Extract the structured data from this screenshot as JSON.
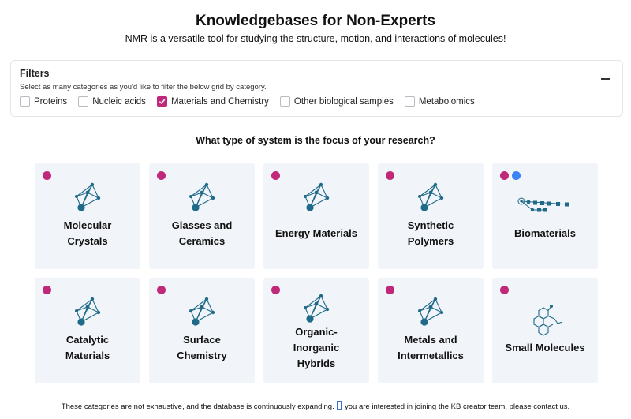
{
  "header": {
    "title": "Knowledgebases for Non-Experts",
    "subtitle": "NMR is a versatile tool for studying the structure, motion, and interactions of molecules!"
  },
  "filters": {
    "title": "Filters",
    "description": "Select as many categories as you'd like to filter the below grid by category.",
    "collapse_icon": "minus-icon",
    "options": [
      {
        "label": "Proteins",
        "checked": false
      },
      {
        "label": "Nucleic acids",
        "checked": false
      },
      {
        "label": "Materials and Chemistry",
        "checked": true
      },
      {
        "label": "Other biological samples",
        "checked": false
      },
      {
        "label": "Metabolomics",
        "checked": false
      }
    ]
  },
  "question": "What type of system is the focus of your research?",
  "colors": {
    "magenta": "#c0287a",
    "blue": "#3b82f6",
    "icon_teal": "#1f6a89",
    "card_bg": "#f1f4f8"
  },
  "cards": [
    {
      "label_lines": [
        "Molecular",
        "Crystals"
      ],
      "dots": [
        "magenta"
      ],
      "icon": "crystal-network-icon"
    },
    {
      "label_lines": [
        "Glasses and",
        "Ceramics"
      ],
      "dots": [
        "magenta"
      ],
      "icon": "crystal-network-icon"
    },
    {
      "label_lines": [
        "Energy Materials"
      ],
      "dots": [
        "magenta"
      ],
      "icon": "crystal-network-icon"
    },
    {
      "label_lines": [
        "Synthetic",
        "Polymers"
      ],
      "dots": [
        "magenta"
      ],
      "icon": "crystal-network-icon"
    },
    {
      "label_lines": [
        "Biomaterials"
      ],
      "dots": [
        "magenta",
        "blue"
      ],
      "icon": "glycan-chain-icon"
    },
    {
      "label_lines": [
        "Catalytic",
        "Materials"
      ],
      "dots": [
        "magenta"
      ],
      "icon": "crystal-network-icon"
    },
    {
      "label_lines": [
        "Surface",
        "Chemistry"
      ],
      "dots": [
        "magenta"
      ],
      "icon": "crystal-network-icon"
    },
    {
      "label_lines": [
        "Organic-",
        "Inorganic",
        "Hybrids"
      ],
      "dots": [
        "magenta"
      ],
      "icon": "crystal-network-icon"
    },
    {
      "label_lines": [
        "Metals and",
        "Intermetallics"
      ],
      "dots": [
        "magenta"
      ],
      "icon": "crystal-network-icon"
    },
    {
      "label_lines": [
        "Small Molecules"
      ],
      "dots": [
        "magenta"
      ],
      "icon": "molecule-structure-icon"
    }
  ],
  "footer": {
    "text_before": "These categories are not exhaustive, and the database is continuously expanding.",
    "text_after": "you are interested in joining the KB creator team, please contact us."
  }
}
